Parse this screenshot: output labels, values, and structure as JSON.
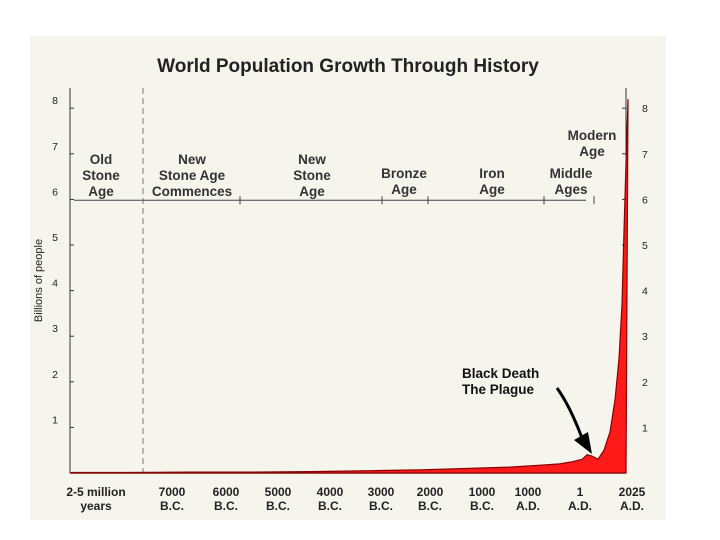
{
  "chart_data": {
    "type": "area",
    "title": "World Population Growth Through History",
    "ylabel": "Billions of people",
    "xlabel": "",
    "ylim": [
      0,
      8.5
    ],
    "y_ticks": [
      "1",
      "2",
      "3",
      "4",
      "5",
      "6",
      "7",
      "8"
    ],
    "x_tick_labels": [
      [
        "2-5 million",
        "years"
      ],
      [
        "7000",
        "B.C."
      ],
      [
        "6000",
        "B.C."
      ],
      [
        "5000",
        "B.C."
      ],
      [
        "4000",
        "B.C."
      ],
      [
        "3000",
        "B.C."
      ],
      [
        "2000",
        "B.C."
      ],
      [
        "1000",
        "B.C."
      ],
      [
        "1000",
        "A.D."
      ],
      [
        "1",
        "A.D."
      ],
      [
        "2025",
        "A.D."
      ]
    ],
    "eras": [
      [
        "Old",
        "Stone",
        "Age"
      ],
      [
        "New",
        "Stone Age",
        "Commences"
      ],
      [
        "New",
        "Stone",
        "Age"
      ],
      [
        "Bronze",
        "Age"
      ],
      [
        "Iron",
        "Age"
      ],
      [
        "Middle",
        "Ages"
      ],
      [
        "Modern",
        "Age"
      ]
    ],
    "annotation": [
      "Black Death",
      "The Plague"
    ],
    "series": [
      {
        "values": [
          0.01,
          0.01,
          0.02,
          0.02,
          0.03,
          0.05,
          0.07,
          0.1,
          0.13,
          0.17,
          0.2,
          0.25,
          0.3,
          0.4,
          0.37,
          0.3,
          0.5,
          0.9,
          1.6,
          2.5,
          3.7,
          5.3,
          6.8,
          8.2
        ]
      }
    ],
    "grid": false,
    "colors": {
      "fill": "#ff1a1a",
      "line": "#880000"
    }
  }
}
